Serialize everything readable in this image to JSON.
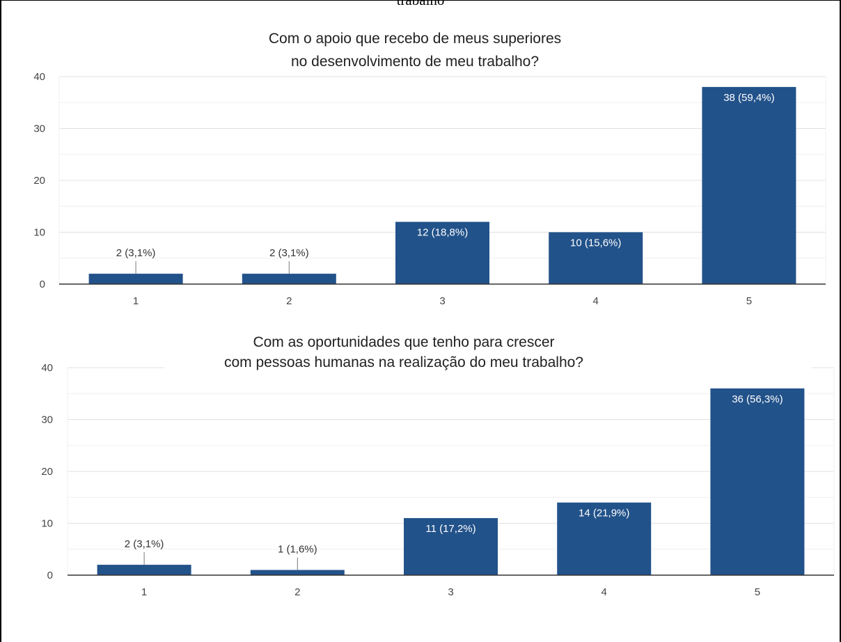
{
  "page": {
    "cut_text": "trabalho"
  },
  "chart_data": [
    {
      "type": "bar",
      "title_lines": [
        "Com o apoio que recebo de meus superiores",
        "no desenvolvimento de meu trabalho?"
      ],
      "categories": [
        "1",
        "2",
        "3",
        "4",
        "5"
      ],
      "values": [
        2,
        2,
        12,
        10,
        38
      ],
      "labels": [
        "2 (3,1%)",
        "2 (3,1%)",
        "12 (18,8%)",
        "10 (15,6%)",
        "38 (59,4%)"
      ],
      "yticks": [
        "0",
        "10",
        "20",
        "30",
        "40"
      ],
      "ylim": [
        0,
        40
      ],
      "grid": true,
      "bar_color": "#22528a"
    },
    {
      "type": "bar",
      "title_lines": [
        "Com as oportunidades que tenho para crescer",
        "com pessoas humanas na realização do meu trabalho?"
      ],
      "categories": [
        "1",
        "2",
        "3",
        "4",
        "5"
      ],
      "values": [
        2,
        1,
        11,
        14,
        36
      ],
      "labels": [
        "2 (3,1%)",
        "1 (1,6%)",
        "11 (17,2%)",
        "14 (21,9%)",
        "36 (56,3%)"
      ],
      "yticks": [
        "0",
        "10",
        "20",
        "30",
        "40"
      ],
      "ylim": [
        0,
        40
      ],
      "grid": true,
      "bar_color": "#22528a"
    }
  ]
}
